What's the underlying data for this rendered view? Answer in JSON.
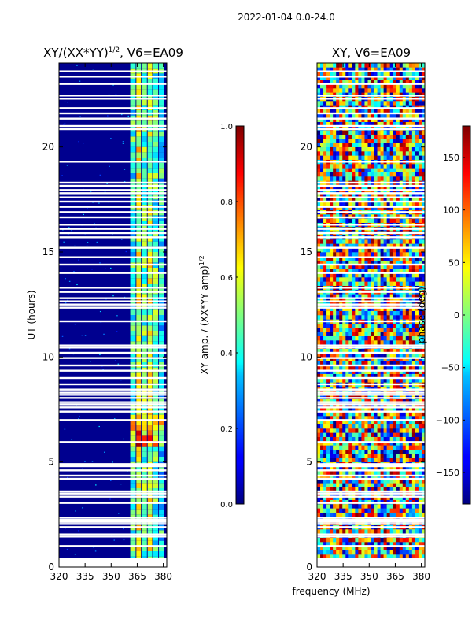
{
  "figure": {
    "suptitle": "2022-01-04 0.0-24.0",
    "xlabel": "frequency (MHz)"
  },
  "chart_data": [
    {
      "type": "heatmap",
      "title": "XY/(XX*YY)^1/2, V6=EA09",
      "title_main": "XY/(XX*YY)",
      "title_sup": "1/2",
      "title_tail": ", V6=EA09",
      "xlabel": "frequency (MHz)",
      "ylabel": "UT (hours)",
      "xlim": [
        320,
        382
      ],
      "ylim": [
        0,
        24
      ],
      "xticks": [
        320,
        335,
        350,
        365,
        380
      ],
      "yticks": [
        0,
        5,
        10,
        15,
        20
      ],
      "band_edges_mhz": [
        361,
        364.5,
        367.5,
        371,
        374,
        377.5,
        381
      ],
      "colorbar": {
        "label_main": "XY amp. / (XX*YY amp)",
        "label_sup": "1/2",
        "range": [
          0.0,
          1.0
        ],
        "ticks": [
          "0.0",
          "0.2",
          "0.4",
          "0.6",
          "0.8",
          "1.0"
        ],
        "tick_values": [
          0,
          0.2,
          0.4,
          0.6,
          0.8,
          1.0
        ],
        "colormap": "jet"
      }
    },
    {
      "type": "heatmap",
      "title": "XY, V6=EA09",
      "xlabel": "frequency (MHz)",
      "ylabel": "",
      "xlim": [
        320,
        382
      ],
      "ylim": [
        0,
        24
      ],
      "xticks": [
        320,
        335,
        350,
        365,
        380
      ],
      "yticks": [
        0,
        5,
        10,
        15,
        20
      ],
      "colorbar": {
        "label": "phase (deg)",
        "range": [
          -180,
          180
        ],
        "ticks": [
          "−150",
          "−100",
          "−50",
          "0",
          "50",
          "100",
          "150"
        ],
        "tick_values": [
          -150,
          -100,
          -50,
          0,
          50,
          100,
          150
        ],
        "colormap": "jet"
      }
    }
  ],
  "flagged_ut_hours": [
    0.2,
    0.35,
    1.0,
    1.45,
    1.55,
    1.9,
    2.05,
    2.15,
    2.25,
    2.35,
    3.05,
    3.35,
    3.5,
    3.6,
    4.2,
    4.35,
    4.6,
    4.8,
    4.9,
    5.95,
    7.0,
    7.4,
    7.6,
    7.75,
    7.85,
    8.05,
    8.2,
    8.3,
    8.45,
    8.7,
    9.0,
    9.35,
    9.6,
    9.95,
    10.2,
    10.45,
    10.55,
    11.7,
    12.35,
    12.5,
    12.65,
    12.8,
    13.1,
    13.3,
    14.0,
    14.4,
    14.75,
    15.2,
    15.7,
    15.9,
    16.1,
    16.3,
    16.65,
    16.9,
    17.15,
    17.4,
    17.6,
    17.8,
    17.95,
    18.15,
    18.3,
    19.3,
    20.85,
    21.0,
    21.35,
    21.6,
    21.85,
    22.3,
    22.45,
    23.0,
    23.35,
    23.6
  ]
}
